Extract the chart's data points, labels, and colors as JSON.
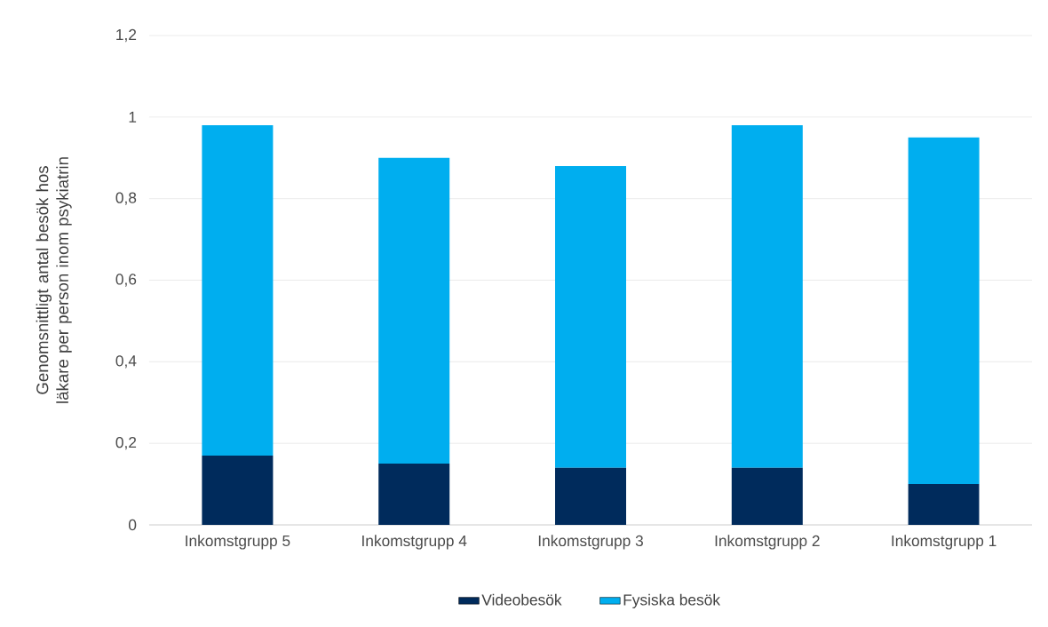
{
  "chart_data": {
    "type": "bar",
    "stacked": true,
    "ylabel": "Genomsnittligt antal besök hos läkare per person inom psykiatrin",
    "categories": [
      "Inkomstgrupp 5",
      "Inkomstgrupp 4",
      "Inkomstgrupp 3",
      "Inkomstgrupp 2",
      "Inkomstgrupp 1"
    ],
    "series": [
      {
        "name": "Videobesök",
        "color": "#002b5c",
        "values": [
          0.17,
          0.15,
          0.14,
          0.14,
          0.1
        ]
      },
      {
        "name": "Fysiska besök",
        "color": "#00aeef",
        "values": [
          0.81,
          0.75,
          0.74,
          0.84,
          0.85
        ]
      }
    ],
    "ylim": [
      0,
      1.2
    ],
    "yticks": [
      0,
      {
        "value": 0.2,
        "label": "0,2"
      },
      {
        "value": 0.4,
        "label": "0,4"
      },
      {
        "value": 0.6,
        "label": "0,6"
      },
      {
        "value": 0.8,
        "label": "0,8"
      },
      1,
      {
        "value": 1.2,
        "label": "1,2"
      }
    ],
    "grid": "y",
    "legend": "bottom"
  }
}
